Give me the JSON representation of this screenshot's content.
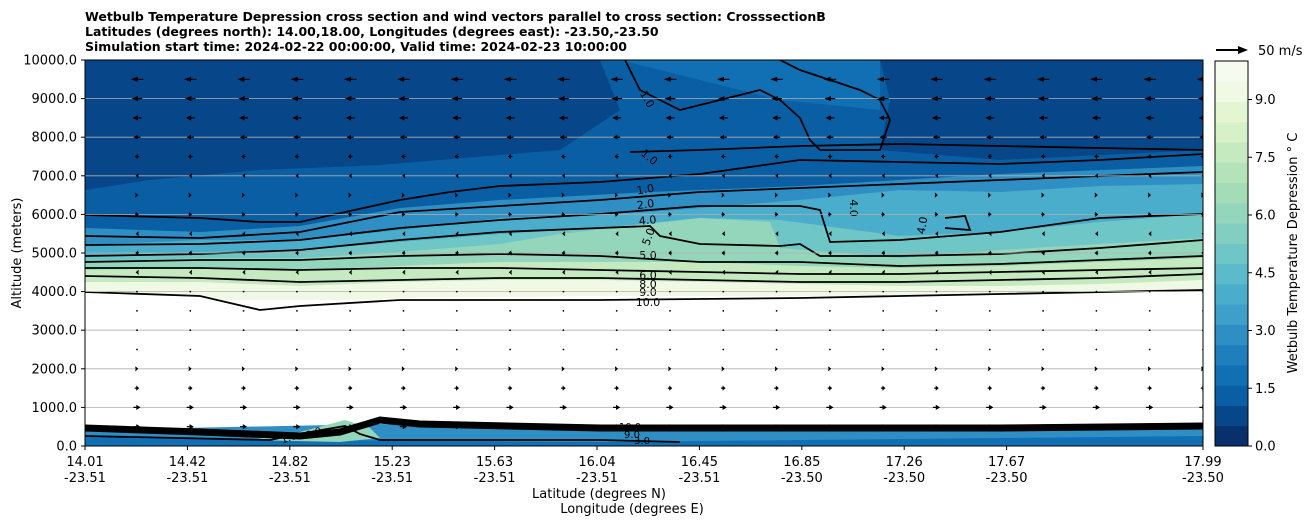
{
  "chart_data": {
    "type": "contour",
    "title_lines": [
      "Wetbulb Temperature Depression cross section and wind vectors parallel to cross section: CrosssectionB",
      "Latitudes (degrees north): 14.00,18.00, Longitudes (degrees east): -23.50,-23.50",
      "Simulation start time: 2024-02-22 00:00:00, Valid time: 2024-02-23 10:00:00"
    ],
    "ylabel": "Altitude (meters)",
    "xlabel_lat": "Latitude (degrees N)",
    "xlabel_lon": "Longitude (degrees E)",
    "ylim": [
      0,
      10000
    ],
    "y_ticks": [
      "0.0",
      "1000.0",
      "2000.0",
      "3000.0",
      "4000.0",
      "5000.0",
      "6000.0",
      "7000.0",
      "8000.0",
      "9000.0",
      "10000.0"
    ],
    "x_ticks": [
      {
        "lat": "14.01",
        "lon": "-23.51"
      },
      {
        "lat": "14.42",
        "lon": "-23.51"
      },
      {
        "lat": "14.82",
        "lon": "-23.51"
      },
      {
        "lat": "15.23",
        "lon": "-23.51"
      },
      {
        "lat": "15.63",
        "lon": "-23.51"
      },
      {
        "lat": "16.04",
        "lon": "-23.51"
      },
      {
        "lat": "16.45",
        "lon": "-23.51"
      },
      {
        "lat": "16.85",
        "lon": "-23.50"
      },
      {
        "lat": "17.26",
        "lon": "-23.50"
      },
      {
        "lat": "17.67",
        "lon": "-23.50"
      },
      {
        "lat": "17.99",
        "lon": "-23.50"
      }
    ],
    "colorbar": {
      "label": "Wetbulb Temperature Depression ° C",
      "range": [
        0,
        10
      ],
      "ticks": [
        "0.0",
        "1.5",
        "3.0",
        "4.5",
        "6.0",
        "7.5",
        "9.0"
      ],
      "levels": [
        "#08306b",
        "#08468a",
        "#0a5ea3",
        "#116fb3",
        "#1f7fbd",
        "#2f8fc4",
        "#3d9fca",
        "#4aadcc",
        "#5bbbca",
        "#6fc6c6",
        "#82cfc1",
        "#93d6bb",
        "#a3dcb6",
        "#b5e3b9",
        "#c6eac0",
        "#d6f0c8",
        "#e4f5d2",
        "#eff9e3",
        "#f5fbef"
      ]
    },
    "reference_vector": {
      "label": "50 m/s",
      "value": 50
    },
    "contour_labels": [
      "1.0",
      "1.0",
      "1.0",
      "2.0",
      "4.0",
      "5.0",
      "5.0",
      "6.0",
      "8.0",
      "9.0",
      "10.0",
      "4.0",
      "4.0",
      "10.0",
      "9.0",
      "3.0",
      "1.0",
      "2.0"
    ],
    "wind_barb_rows": [
      {
        "altitude": 9500,
        "speed": 14,
        "direction": "west"
      },
      {
        "altitude": 9000,
        "speed": 12,
        "direction": "west"
      },
      {
        "altitude": 8500,
        "speed": 10,
        "direction": "west"
      },
      {
        "altitude": 8000,
        "speed": 8,
        "direction": "west"
      },
      {
        "altitude": 7500,
        "speed": 5,
        "direction": "west"
      },
      {
        "altitude": 7000,
        "speed": 3,
        "direction": "west"
      },
      {
        "altitude": 6500,
        "speed": 3,
        "direction": "east"
      },
      {
        "altitude": 6000,
        "speed": 4,
        "direction": "east"
      },
      {
        "altitude": 5500,
        "speed": 3,
        "direction": "west"
      },
      {
        "altitude": 5000,
        "speed": 4,
        "direction": "west"
      },
      {
        "altitude": 4500,
        "speed": 3,
        "direction": "west"
      },
      {
        "altitude": 4000,
        "speed": 2,
        "direction": "east"
      },
      {
        "altitude": 3500,
        "speed": 1,
        "direction": "east"
      },
      {
        "altitude": 3000,
        "speed": 1,
        "direction": "east"
      },
      {
        "altitude": 2500,
        "speed": 1,
        "direction": "east"
      },
      {
        "altitude": 2000,
        "speed": 3,
        "direction": "east"
      },
      {
        "altitude": 1500,
        "speed": 5,
        "direction": "east"
      },
      {
        "altitude": 1000,
        "speed": 8,
        "direction": "east"
      },
      {
        "altitude": 500,
        "speed": 8,
        "direction": "east"
      }
    ]
  }
}
